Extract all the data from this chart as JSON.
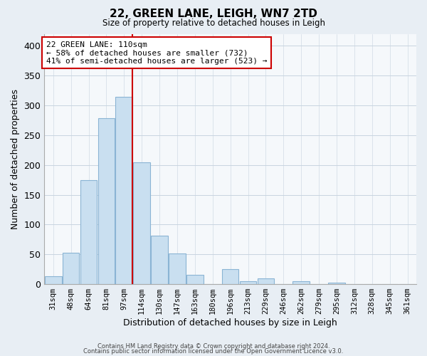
{
  "title": "22, GREEN LANE, LEIGH, WN7 2TD",
  "subtitle": "Size of property relative to detached houses in Leigh",
  "xlabel": "Distribution of detached houses by size in Leigh",
  "ylabel": "Number of detached properties",
  "bar_labels": [
    "31sqm",
    "48sqm",
    "64sqm",
    "81sqm",
    "97sqm",
    "114sqm",
    "130sqm",
    "147sqm",
    "163sqm",
    "180sqm",
    "196sqm",
    "213sqm",
    "229sqm",
    "246sqm",
    "262sqm",
    "279sqm",
    "295sqm",
    "312sqm",
    "328sqm",
    "345sqm",
    "361sqm"
  ],
  "bar_heights": [
    13,
    53,
    175,
    278,
    314,
    204,
    81,
    51,
    16,
    0,
    25,
    5,
    10,
    0,
    5,
    0,
    2,
    0,
    0,
    0,
    0
  ],
  "bar_color": "#c9dff0",
  "bar_edge_color": "#8ab4d4",
  "vline_color": "#cc0000",
  "annotation_line1": "22 GREEN LANE: 110sqm",
  "annotation_line2": "← 58% of detached houses are smaller (732)",
  "annotation_line3": "41% of semi-detached houses are larger (523) →",
  "annotation_box_color": "#ffffff",
  "annotation_box_edge": "#cc0000",
  "ylim": [
    0,
    420
  ],
  "yticks": [
    0,
    50,
    100,
    150,
    200,
    250,
    300,
    350,
    400
  ],
  "footer1": "Contains HM Land Registry data © Crown copyright and database right 2024.",
  "footer2": "Contains public sector information licensed under the Open Government Licence v3.0.",
  "bg_color": "#e8eef4",
  "plot_bg_color": "#f5f8fb",
  "grid_color": "#c8d4e0"
}
